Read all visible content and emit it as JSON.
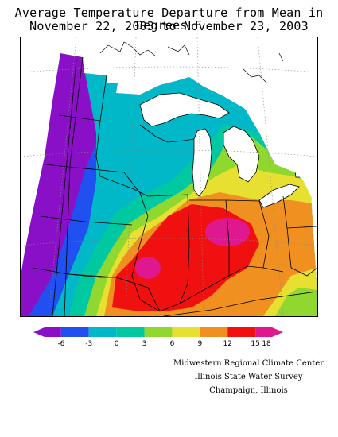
{
  "title": {
    "line1": "Average Temperature Departure from Mean in Degrees F",
    "line2": "November 22, 2003 to November 23, 2003"
  },
  "legend": {
    "colors": [
      "#8a10c8",
      "#2050f0",
      "#00b8c8",
      "#00c8a0",
      "#90d830",
      "#e8e030",
      "#f09020",
      "#f01010",
      "#e01890"
    ],
    "ticks": [
      "-6",
      "-3",
      "0",
      "3",
      "6",
      "9",
      "12",
      "15",
      "18"
    ]
  },
  "credits": {
    "line1": "Midwestern Regional Climate Center",
    "line2": "Illinois State Water Survey",
    "line3": "Champaign, Illinois"
  },
  "palette": {
    "purple": "#8a10c8",
    "blue": "#2050f0",
    "cyan": "#00b8c8",
    "teal": "#00c8a0",
    "green": "#90d830",
    "yellow": "#e8e030",
    "orange": "#f09020",
    "red": "#f01010",
    "magenta": "#e01890"
  }
}
